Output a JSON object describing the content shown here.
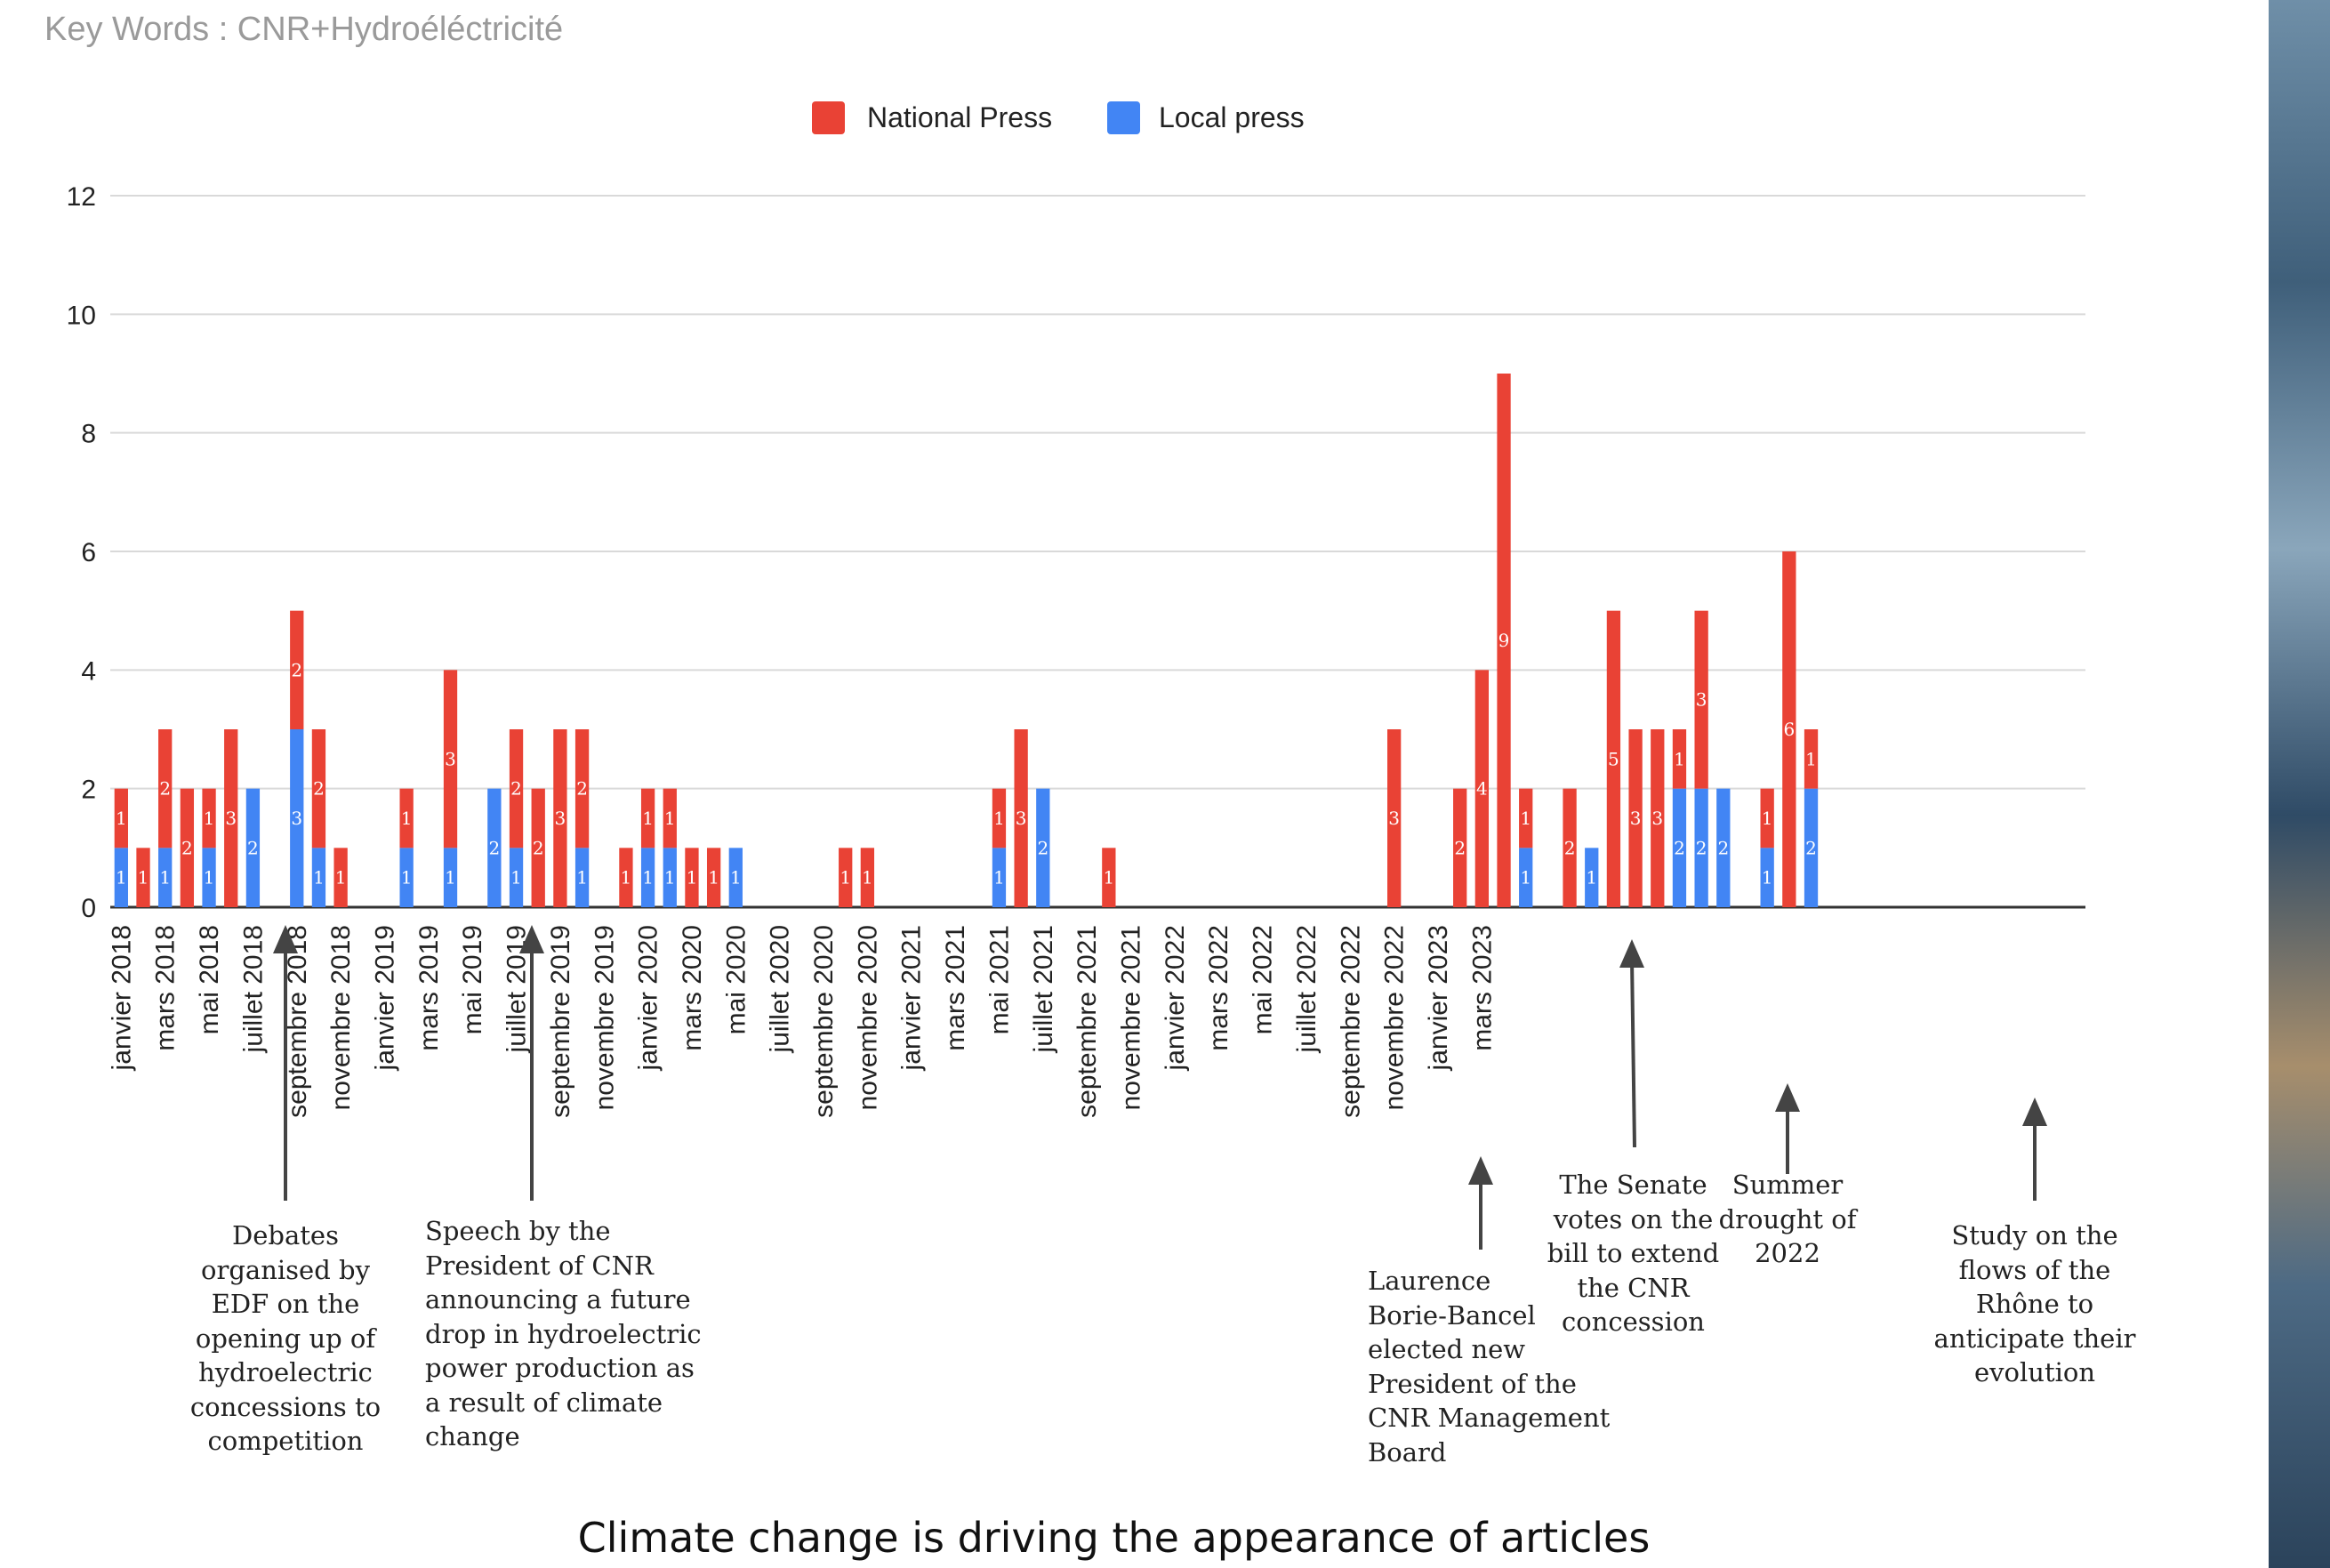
{
  "header": {
    "keywords": "Key Words : CNR+Hydroéléctricité"
  },
  "caption": "Climate change is driving the appearance of articles",
  "colors": {
    "national": "#e94235",
    "local": "#4285f4",
    "grid": "#d9d9d9",
    "axis": "#333333"
  },
  "chart_data": {
    "type": "bar",
    "stacked": true,
    "y_ticks": [
      "0",
      "2",
      "4",
      "6",
      "8",
      "10",
      "12"
    ],
    "ylim": [
      0,
      12
    ],
    "grid": true,
    "legend_position": "top-center",
    "x_tick_labels": [
      "janvier 2018",
      "mars 2018",
      "mai 2018",
      "juillet 2018",
      "septembre 2018",
      "novembre 2018",
      "janvier 2019",
      "mars 2019",
      "mai 2019",
      "juillet 2019",
      "septembre 2019",
      "novembre 2019",
      "janvier 2020",
      "mars 2020",
      "mai 2020",
      "juillet 2020",
      "septembre 2020",
      "novembre 2020",
      "janvier 2021",
      "mars 2021",
      "mai 2021",
      "juillet 2021",
      "septembre 2021",
      "novembre 2021",
      "janvier 2022",
      "mars 2022",
      "mai 2022",
      "juillet 2022",
      "septembre 2022",
      "novembre 2022",
      "janvier 2023",
      "mars 2023"
    ],
    "series": [
      {
        "name": "Local press",
        "values": [
          1,
          0,
          1,
          0,
          1,
          0,
          2,
          0,
          3,
          1,
          0,
          0,
          0,
          1,
          0,
          1,
          0,
          2,
          1,
          0,
          0,
          1,
          0,
          0,
          1,
          1,
          0,
          0,
          1,
          0,
          0,
          0,
          0,
          0,
          0,
          0,
          0,
          0,
          0,
          0,
          1,
          0,
          2,
          0,
          0,
          0,
          0,
          0,
          0,
          0,
          0,
          0,
          0,
          0,
          0,
          0,
          0,
          0,
          0,
          0,
          0,
          0,
          0,
          0,
          1,
          0,
          0,
          1,
          0,
          0,
          0,
          2,
          2,
          2,
          0,
          1,
          0,
          2,
          0,
          0,
          0,
          0,
          0,
          0,
          0,
          0,
          0,
          0,
          0,
          0
        ]
      },
      {
        "name": "National Press",
        "values": [
          1,
          1,
          2,
          2,
          1,
          3,
          0,
          0,
          2,
          2,
          1,
          0,
          0,
          1,
          0,
          3,
          0,
          0,
          2,
          2,
          3,
          2,
          0,
          1,
          1,
          1,
          1,
          1,
          0,
          0,
          0,
          0,
          0,
          1,
          1,
          0,
          0,
          0,
          0,
          0,
          1,
          3,
          0,
          0,
          0,
          1,
          0,
          0,
          0,
          0,
          0,
          0,
          0,
          0,
          0,
          0,
          0,
          0,
          3,
          0,
          0,
          2,
          4,
          9,
          1,
          0,
          2,
          0,
          5,
          3,
          3,
          1,
          3,
          0,
          0,
          1,
          6,
          1,
          0,
          0,
          0,
          0,
          0,
          0,
          0,
          0,
          0,
          0,
          0,
          0
        ]
      }
    ]
  },
  "annotations": [
    {
      "text": "Debates\norganised by\nEDF on the\nopening up of\nhydroelectric\nconcessions to\ncompetition"
    },
    {
      "text": "Speech by the\nPresident of CNR\nannouncing a future\ndrop in hydroelectric\npower production as\na result of climate\nchange"
    },
    {
      "text": "Laurence\nBorie-Bancel\nelected new\nPresident of the\nCNR Management\nBoard"
    },
    {
      "text": "The Senate\nvotes on the\nbill to extend\nthe CNR\nconcession"
    },
    {
      "text": "Summer\ndrought of\n2022"
    },
    {
      "text": "Study on the\nflows of the\nRhône to\nanticipate their\nevolution"
    }
  ]
}
